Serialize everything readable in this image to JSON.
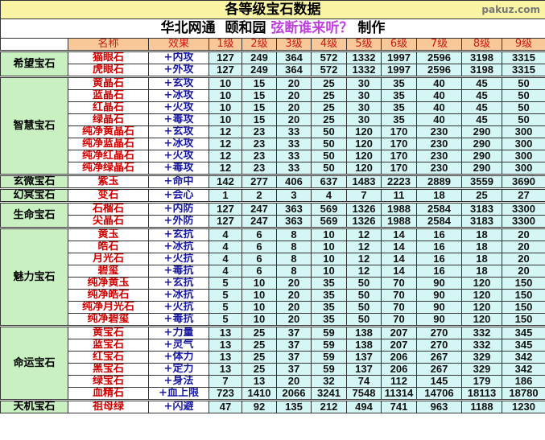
{
  "title": "各等级宝石数据",
  "subtitle": {
    "prefix": "华北网通  颐和园 ",
    "author": "弦断谁来听？",
    "suffix": " 制作"
  },
  "headers": {
    "name": "名称",
    "effect": "效果",
    "levels": [
      "1级",
      "2级",
      "3级",
      "4级",
      "5级",
      "6级",
      "7级",
      "8级",
      "9级"
    ]
  },
  "groups": [
    {
      "group": "希望宝石",
      "rows": [
        {
          "name": "猫眼石",
          "effect": "+内攻",
          "values": [
            127,
            249,
            364,
            572,
            1332,
            1997,
            2596,
            3198,
            3315
          ]
        },
        {
          "name": "虎眼石",
          "effect": "+外攻",
          "values": [
            127,
            249,
            364,
            572,
            1332,
            1997,
            2596,
            3198,
            3315
          ]
        }
      ]
    },
    {
      "group": "智慧宝石",
      "rows": [
        {
          "name": "黄晶石",
          "effect": "+玄攻",
          "values": [
            10,
            15,
            20,
            25,
            30,
            35,
            40,
            45,
            50
          ]
        },
        {
          "name": "蓝晶石",
          "effect": "+冰攻",
          "values": [
            10,
            15,
            20,
            25,
            30,
            35,
            40,
            45,
            50
          ]
        },
        {
          "name": "红晶石",
          "effect": "+火攻",
          "values": [
            10,
            15,
            20,
            25,
            30,
            35,
            40,
            45,
            50
          ]
        },
        {
          "name": "绿晶石",
          "effect": "+毒攻",
          "values": [
            10,
            15,
            20,
            25,
            30,
            35,
            40,
            45,
            50
          ]
        },
        {
          "name": "纯净黄晶石",
          "effect": "+玄攻",
          "values": [
            12,
            23,
            33,
            50,
            120,
            170,
            230,
            290,
            300
          ]
        },
        {
          "name": "纯净蓝晶石",
          "effect": "+冰攻",
          "values": [
            12,
            23,
            33,
            50,
            120,
            170,
            230,
            290,
            300
          ]
        },
        {
          "name": "纯净红晶石",
          "effect": "+火攻",
          "values": [
            12,
            23,
            33,
            50,
            120,
            170,
            230,
            290,
            300
          ]
        },
        {
          "name": "纯净绿晶石",
          "effect": "+毒攻",
          "values": [
            12,
            23,
            33,
            50,
            120,
            170,
            230,
            290,
            300
          ]
        }
      ]
    },
    {
      "group": "玄微宝石",
      "rows": [
        {
          "name": "紫玉",
          "effect": "+命中",
          "values": [
            142,
            277,
            406,
            637,
            1483,
            2223,
            2889,
            3559,
            3690
          ]
        }
      ]
    },
    {
      "group": "幻冥宝石",
      "rows": [
        {
          "name": "变石",
          "effect": "+会心",
          "values": [
            1,
            2,
            3,
            4,
            7,
            11,
            18,
            25,
            27
          ]
        }
      ]
    },
    {
      "group": "生命宝石",
      "rows": [
        {
          "name": "石榴石",
          "effect": "+内防",
          "values": [
            127,
            247,
            363,
            569,
            1326,
            1988,
            2584,
            3183,
            3300
          ]
        },
        {
          "name": "尖晶石",
          "effect": "+外防",
          "values": [
            127,
            247,
            363,
            569,
            1326,
            1988,
            2584,
            3183,
            3300
          ]
        }
      ]
    },
    {
      "group": "魅力宝石",
      "rows": [
        {
          "name": "黄玉",
          "effect": "+玄抗",
          "values": [
            4,
            6,
            8,
            10,
            12,
            14,
            16,
            18,
            20
          ]
        },
        {
          "name": "皓石",
          "effect": "+冰抗",
          "values": [
            4,
            6,
            8,
            10,
            12,
            14,
            16,
            18,
            20
          ]
        },
        {
          "name": "月光石",
          "effect": "+火抗",
          "values": [
            4,
            6,
            8,
            10,
            12,
            14,
            16,
            18,
            20
          ]
        },
        {
          "name": "碧玺",
          "effect": "+毒抗",
          "values": [
            4,
            6,
            8,
            10,
            12,
            14,
            16,
            18,
            20
          ]
        },
        {
          "name": "纯净黄玉",
          "effect": "+玄抗",
          "values": [
            5,
            10,
            20,
            35,
            50,
            70,
            90,
            120,
            150
          ]
        },
        {
          "name": "纯净皓石",
          "effect": "+冰抗",
          "values": [
            5,
            10,
            20,
            35,
            50,
            70,
            90,
            120,
            150
          ]
        },
        {
          "name": "纯净月光石",
          "effect": "+火抗",
          "values": [
            5,
            10,
            20,
            35,
            50,
            70,
            90,
            120,
            150
          ]
        },
        {
          "name": "纯净碧玺",
          "effect": "+毒抗",
          "values": [
            5,
            10,
            20,
            35,
            50,
            70,
            90,
            120,
            150
          ]
        }
      ]
    },
    {
      "group": "命运宝石",
      "rows": [
        {
          "name": "黄宝石",
          "effect": "+力量",
          "values": [
            13,
            25,
            37,
            59,
            138,
            207,
            270,
            332,
            345
          ]
        },
        {
          "name": "蓝宝石",
          "effect": "+灵气",
          "values": [
            13,
            25,
            37,
            59,
            138,
            207,
            270,
            332,
            345
          ]
        },
        {
          "name": "红宝石",
          "effect": "+体力",
          "values": [
            13,
            25,
            37,
            59,
            137,
            206,
            267,
            329,
            342
          ]
        },
        {
          "name": "黑宝石",
          "effect": "+定力",
          "values": [
            13,
            25,
            37,
            59,
            137,
            206,
            267,
            329,
            342
          ]
        },
        {
          "name": "绿宝石",
          "effect": "+身法",
          "values": [
            7,
            13,
            20,
            32,
            74,
            112,
            145,
            179,
            186
          ]
        },
        {
          "name": "血精石",
          "effect": "+血上限",
          "values": [
            723,
            1410,
            2066,
            3241,
            7548,
            11314,
            14706,
            18113,
            18780
          ]
        }
      ]
    },
    {
      "group": "天机宝石",
      "rows": [
        {
          "name": "祖母绿",
          "effect": "+闪避",
          "values": [
            47,
            92,
            135,
            212,
            494,
            741,
            963,
            1188,
            1230
          ]
        }
      ]
    }
  ],
  "watermark": "pakuz.com"
}
